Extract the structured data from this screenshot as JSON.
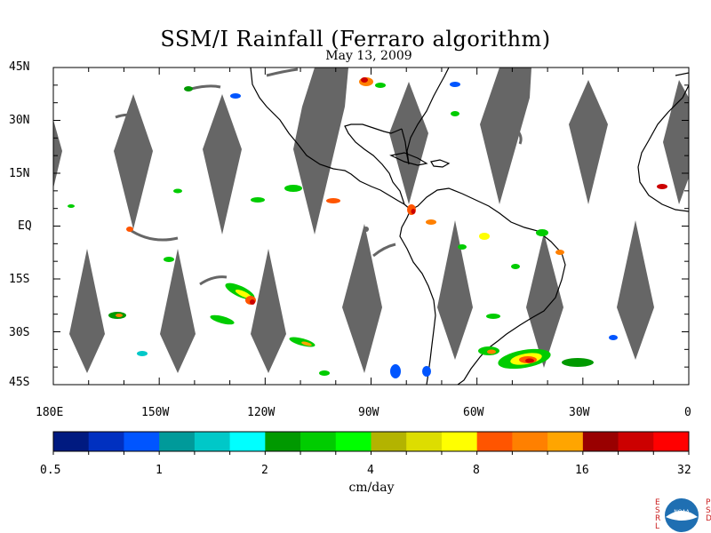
{
  "header": {
    "title": "SSM/I Rainfall (Ferraro algorithm)",
    "date": "May 13, 2009"
  },
  "map": {
    "lat_labels": [
      "45N",
      "30N",
      "15N",
      "EQ",
      "15S",
      "30S",
      "45S"
    ],
    "lon_labels": [
      "180E",
      "150W",
      "120W",
      "90W",
      "60W",
      "30W",
      "0"
    ],
    "lon_range": [
      -180,
      0
    ],
    "lat_range": [
      -45,
      45
    ],
    "swath_gap_color": "#666666",
    "coastline_color": "#000000"
  },
  "colorbar": {
    "colors": [
      "#001a80",
      "#0030c0",
      "#0055ff",
      "#009a9a",
      "#00c8c8",
      "#00ffff",
      "#009900",
      "#00cc00",
      "#00ff00",
      "#b3b300",
      "#dddd00",
      "#ffff00",
      "#ff5500",
      "#ff8000",
      "#ffa500",
      "#990000",
      "#cc0000",
      "#ff0000"
    ],
    "tick_labels": [
      "0.5",
      "1",
      "2",
      "4",
      "8",
      "16",
      "32"
    ],
    "units": "cm/day"
  },
  "logo": {
    "left_text": "ESRL",
    "right_text": "PSD",
    "center_text": "NOAA"
  }
}
